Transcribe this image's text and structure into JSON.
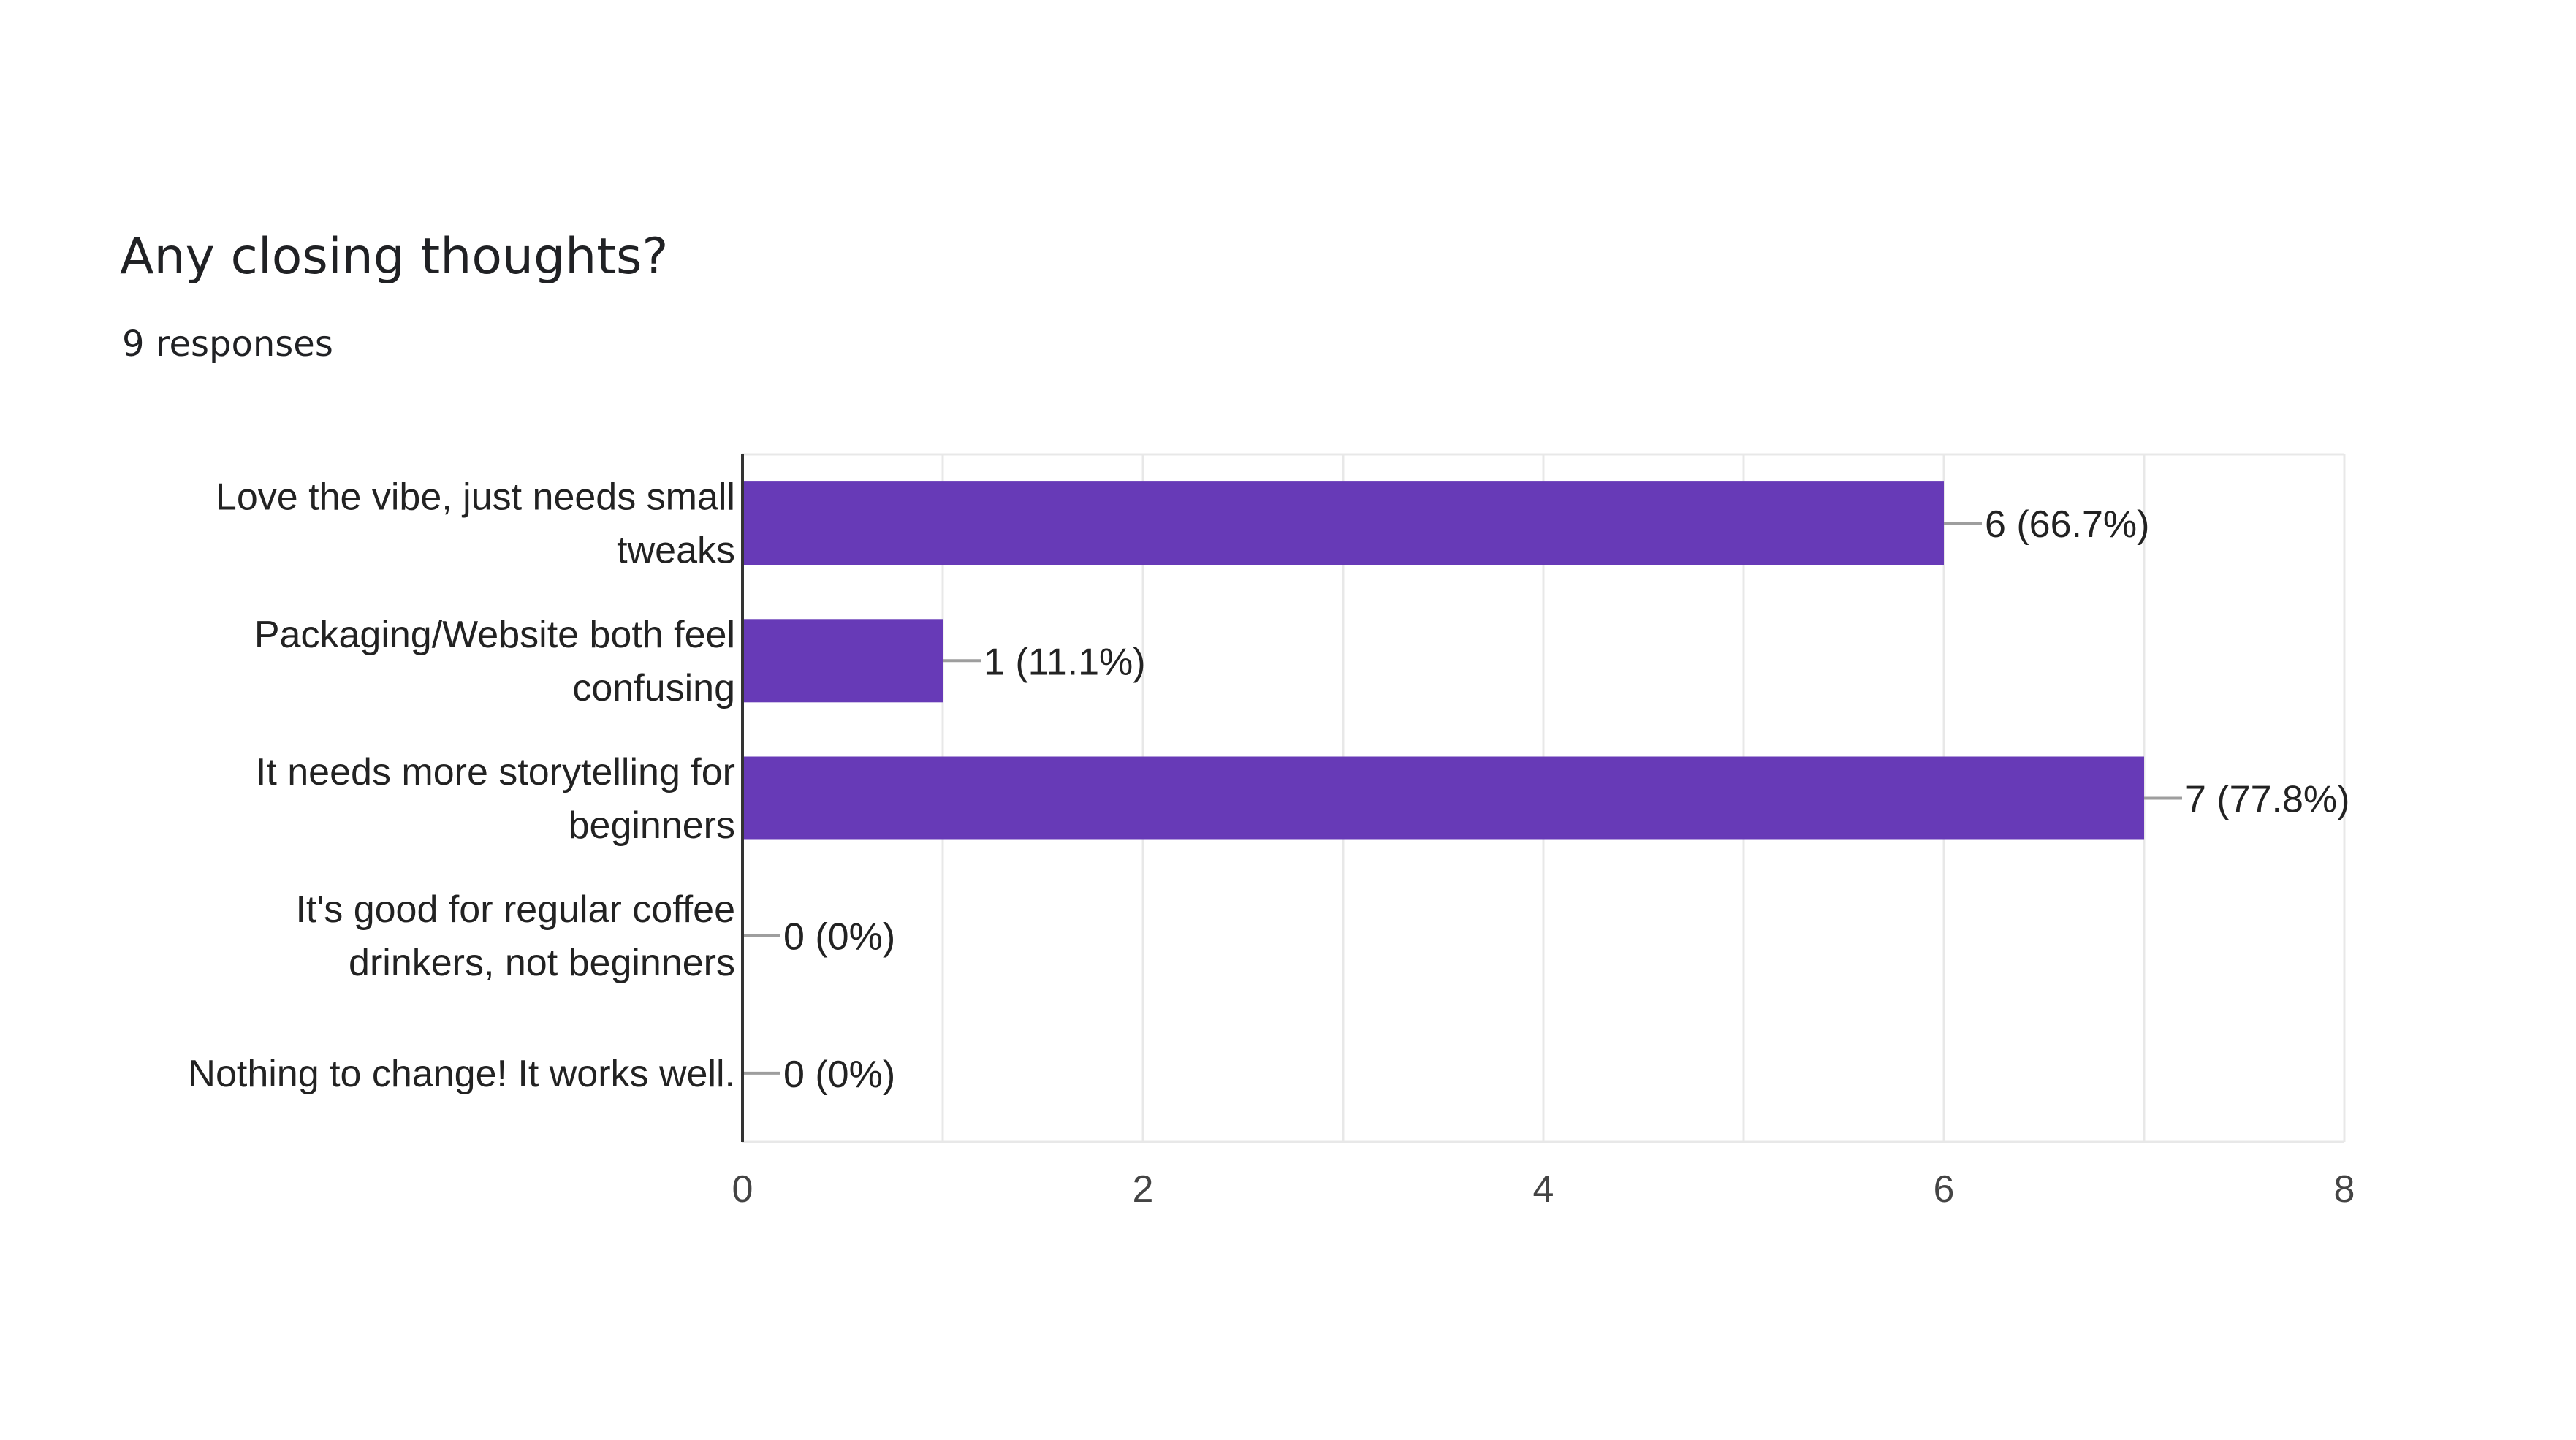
{
  "header": {
    "title": "Any closing thoughts?",
    "responses": "9 responses"
  },
  "colors": {
    "bar": "#673ab7",
    "grid": "#e8e8e8",
    "axis": "#333333",
    "text": "#222222",
    "leader": "#9e9e9e"
  },
  "chart_data": {
    "type": "bar",
    "orientation": "horizontal",
    "title": "Any closing thoughts?",
    "subtitle": "9 responses",
    "categories": [
      [
        "Love the vibe, just needs small",
        "tweaks"
      ],
      [
        "Packaging/Website both feel",
        "confusing"
      ],
      [
        "It needs more storytelling for",
        "beginners"
      ],
      [
        "It's good for regular coffee",
        "drinkers, not beginners"
      ],
      [
        "Nothing to change! It works well."
      ]
    ],
    "values": [
      6,
      1,
      7,
      0,
      0
    ],
    "data_labels": [
      "6 (66.7%)",
      "1 (11.1%)",
      "7 (77.8%)",
      "0 (0%)",
      "0 (0%)"
    ],
    "xlim": [
      0,
      8
    ],
    "x_ticks": [
      0,
      2,
      4,
      6,
      8
    ],
    "x_tick_labels": [
      "0",
      "2",
      "4",
      "6",
      "8"
    ],
    "grid": true,
    "legend": "none"
  }
}
